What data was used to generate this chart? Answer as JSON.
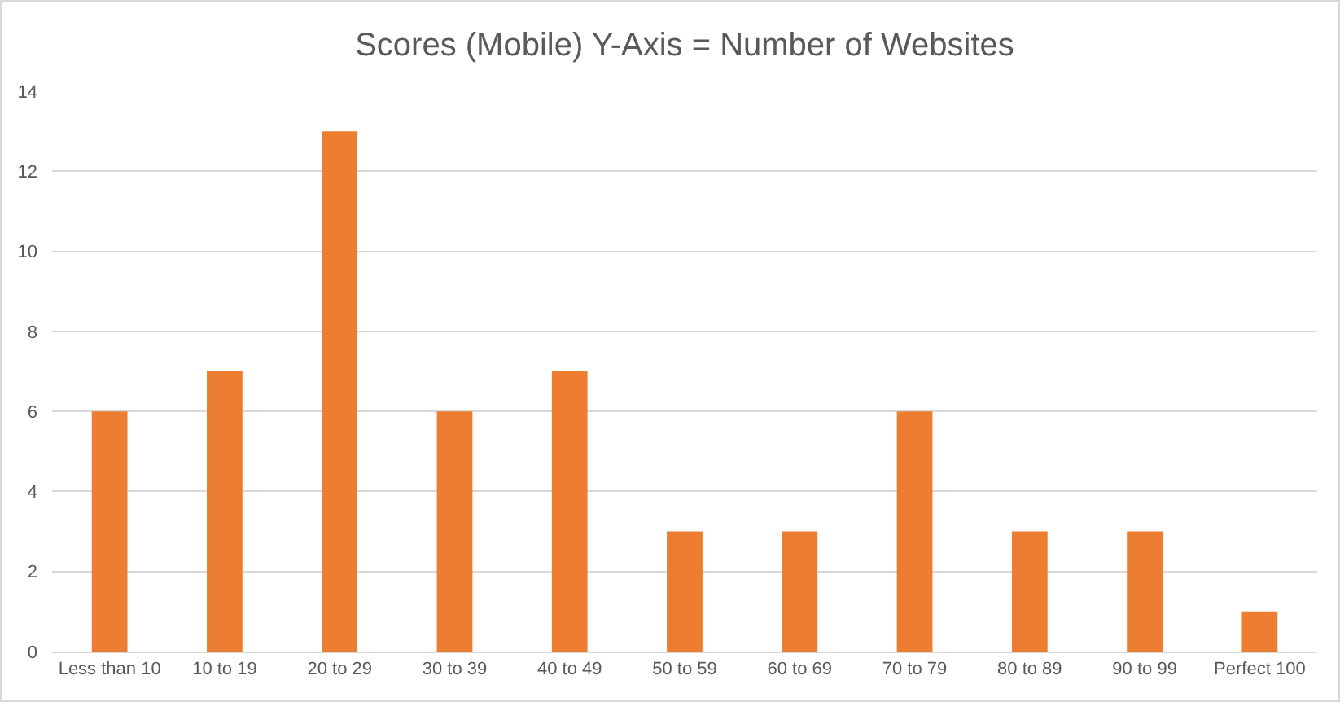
{
  "chart_data": {
    "type": "bar",
    "title": "Scores (Mobile) Y-Axis = Number of Websites",
    "categories": [
      "Less than 10",
      "10 to 19",
      "20 to 29",
      "30 to 39",
      "40 to 49",
      "50 to 59",
      "60 to 69",
      "70 to 79",
      "80 to 89",
      "90 to 99",
      "Perfect 100"
    ],
    "values": [
      6,
      7,
      13,
      6,
      7,
      3,
      3,
      6,
      3,
      3,
      1
    ],
    "color": "#ed7d31",
    "ylim": [
      0,
      14
    ],
    "yticks": [
      0,
      2,
      4,
      6,
      8,
      10,
      12,
      14
    ],
    "grid": "y"
  }
}
